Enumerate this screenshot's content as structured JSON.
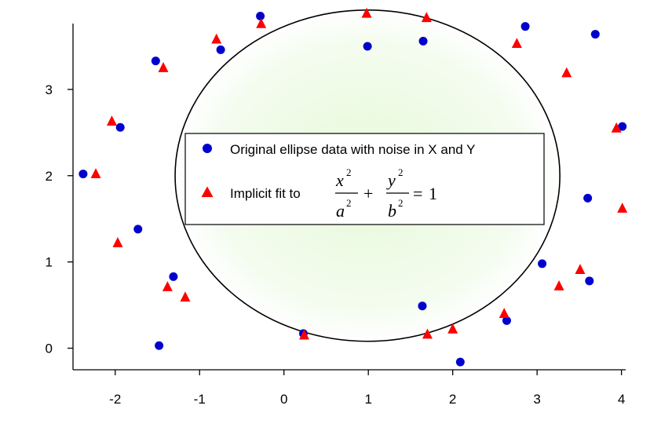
{
  "chart_data": {
    "type": "scatter",
    "xlim": [
      -2.5,
      4.05
    ],
    "ylim": [
      -0.25,
      3.9
    ],
    "x_ticks": [
      -2,
      -1,
      0,
      1,
      2,
      3,
      4
    ],
    "x_tick_labels": [
      "-2",
      "-1",
      "0",
      "1",
      "2",
      "3",
      "4"
    ],
    "y_ticks": [
      0,
      1,
      2,
      3
    ],
    "y_tick_labels": [
      "0",
      "1",
      "2",
      "3"
    ],
    "grid": false,
    "legend_position": "center",
    "series": [
      {
        "name": "Original ellipse data with noise in X and Y",
        "marker": "circle",
        "color": "#0000cc",
        "points": [
          [
            -2.38,
            2.02
          ],
          [
            -1.94,
            2.56
          ],
          [
            -1.73,
            1.38
          ],
          [
            -1.52,
            3.33
          ],
          [
            -1.48,
            0.03
          ],
          [
            -1.31,
            0.83
          ],
          [
            -0.75,
            3.46
          ],
          [
            -0.28,
            3.85
          ],
          [
            0.23,
            0.17
          ],
          [
            0.99,
            3.5
          ],
          [
            1.64,
            0.49
          ],
          [
            1.65,
            3.56
          ],
          [
            2.09,
            -0.16
          ],
          [
            2.64,
            0.32
          ],
          [
            2.86,
            3.73
          ],
          [
            3.06,
            0.98
          ],
          [
            3.6,
            1.74
          ],
          [
            3.62,
            0.78
          ],
          [
            3.69,
            3.64
          ],
          [
            4.01,
            2.57
          ]
        ]
      },
      {
        "name": "Implicit fit",
        "marker": "triangle",
        "color": "#ff0000",
        "points": [
          [
            -2.23,
            2.02
          ],
          [
            -2.04,
            2.63
          ],
          [
            -1.97,
            1.22
          ],
          [
            -1.43,
            3.25
          ],
          [
            -1.38,
            0.71
          ],
          [
            -1.17,
            0.59
          ],
          [
            -0.8,
            3.58
          ],
          [
            -0.27,
            3.76
          ],
          [
            0.24,
            0.15
          ],
          [
            0.98,
            3.88
          ],
          [
            1.69,
            3.83
          ],
          [
            1.7,
            0.16
          ],
          [
            2.0,
            0.22
          ],
          [
            2.61,
            0.4
          ],
          [
            2.76,
            3.53
          ],
          [
            3.26,
            0.72
          ],
          [
            3.35,
            3.19
          ],
          [
            3.51,
            0.91
          ],
          [
            3.94,
            2.55
          ],
          [
            4.01,
            1.62
          ]
        ]
      }
    ],
    "fit_ellipse": {
      "center": [
        0.99,
        2.0
      ],
      "a": 2.28,
      "b": 1.92
    }
  },
  "legend": {
    "entry1": "Original ellipse data with noise in X and Y",
    "entry2_prefix": "Implicit fit to",
    "eq_x": "x",
    "eq_a": "a",
    "eq_y": "y",
    "eq_b": "b",
    "eq_exp": "2",
    "eq_plus": "+",
    "eq_equals": "=",
    "eq_one": "1"
  }
}
